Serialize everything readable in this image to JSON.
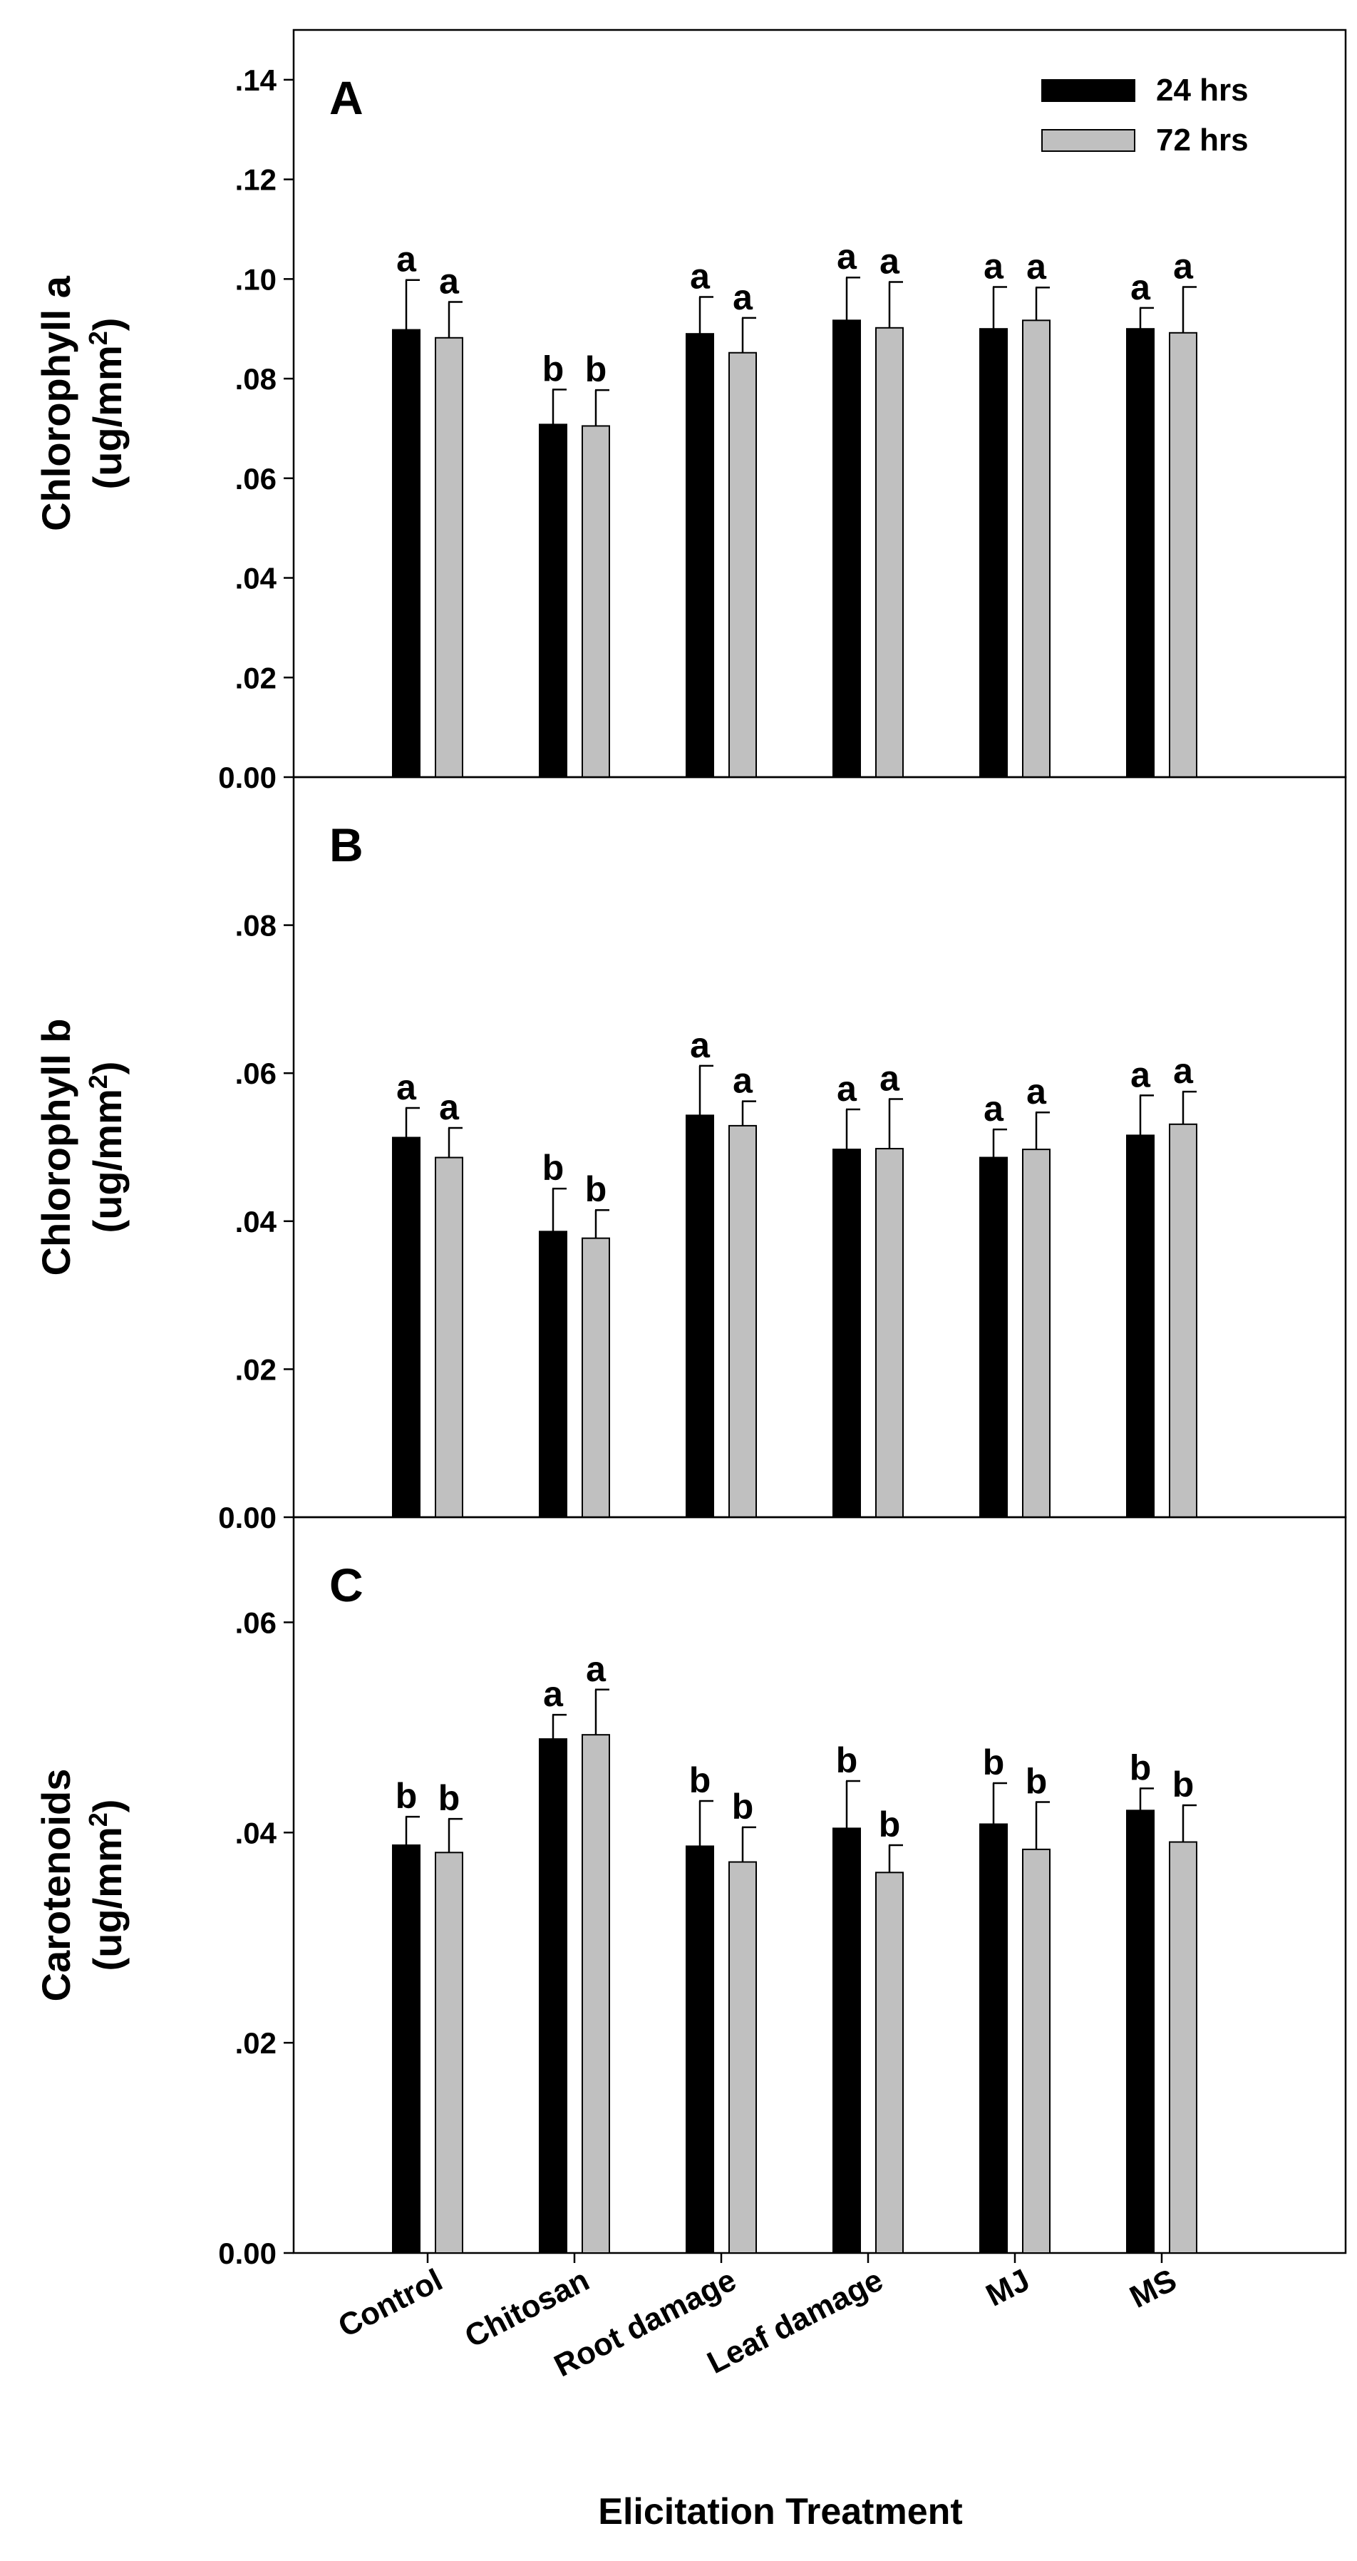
{
  "chart_data": {
    "type": "bar",
    "categories": [
      "Control",
      "Chitosan",
      "Root damage",
      "Leaf damage",
      "MJ",
      "MS"
    ],
    "xlabel": "Elicitation Treatment",
    "legend": {
      "placement": "top-right",
      "entries": [
        "24 hrs",
        "72 hrs"
      ]
    },
    "colors": {
      "24 hrs": "#000000",
      "72 hrs": "#c0c0c0"
    },
    "panels": [
      {
        "letter": "A",
        "ylabel_line1": "Chlorophyll a",
        "ylabel_line2": "(ug/mm",
        "ylabel_sup": "2",
        "ylabel_close": ")",
        "ylim": [
          0,
          0.15
        ],
        "yticks": [
          0,
          0.02,
          0.04,
          0.06,
          0.08,
          0.1,
          0.12,
          0.14
        ],
        "ytick_labels": [
          "0.00",
          ".02",
          ".04",
          ".06",
          ".08",
          ".10",
          ".12",
          ".14"
        ],
        "series": [
          {
            "name": "24 hrs",
            "values": [
              0.0898,
              0.0708,
              0.089,
              0.0917,
              0.09,
              0.09
            ],
            "errors": [
              0.01,
              0.007,
              0.0074,
              0.0086,
              0.0084,
              0.0042
            ],
            "letters": [
              "a",
              "b",
              "a",
              "a",
              "a",
              "a"
            ]
          },
          {
            "name": "72 hrs",
            "values": [
              0.0882,
              0.0705,
              0.0852,
              0.0902,
              0.0917,
              0.0892
            ],
            "errors": [
              0.0072,
              0.0072,
              0.007,
              0.0092,
              0.0066,
              0.0092
            ],
            "letters": [
              "a",
              "b",
              "a",
              "a",
              "a",
              "a"
            ]
          }
        ]
      },
      {
        "letter": "B",
        "ylabel_line1": "Chlorophyll b",
        "ylabel_line2": "(ug/mm",
        "ylabel_sup": "2",
        "ylabel_close": ")",
        "ylim": [
          0,
          0.1
        ],
        "yticks": [
          0,
          0.02,
          0.04,
          0.06,
          0.08
        ],
        "ytick_labels": [
          "0.00",
          ".02",
          ".04",
          ".06",
          ".08"
        ],
        "series": [
          {
            "name": "24 hrs",
            "values": [
              0.0513,
              0.0386,
              0.0543,
              0.0497,
              0.0486,
              0.0516
            ],
            "errors": [
              0.004,
              0.0058,
              0.0067,
              0.0054,
              0.0038,
              0.0054
            ],
            "letters": [
              "a",
              "b",
              "a",
              "a",
              "a",
              "a"
            ]
          },
          {
            "name": "72 hrs",
            "values": [
              0.0486,
              0.0377,
              0.0529,
              0.0498,
              0.0497,
              0.0531
            ],
            "errors": [
              0.004,
              0.0038,
              0.0033,
              0.0067,
              0.005,
              0.0044
            ],
            "letters": [
              "a",
              "b",
              "a",
              "a",
              "a",
              "a"
            ]
          }
        ]
      },
      {
        "letter": "C",
        "ylabel_line1": "Carotenoids",
        "ylabel_line2": "(ug/mm",
        "ylabel_sup": "2",
        "ylabel_close": ")",
        "ylim": [
          0,
          0.07
        ],
        "yticks": [
          0,
          0.02,
          0.04,
          0.06
        ],
        "ytick_labels": [
          "0.00",
          ".02",
          ".04",
          ".06"
        ],
        "series": [
          {
            "name": "24 hrs",
            "values": [
              0.0388,
              0.0489,
              0.0387,
              0.0404,
              0.0408,
              0.0421
            ],
            "errors": [
              0.0027,
              0.0023,
              0.0043,
              0.0045,
              0.0039,
              0.0021
            ],
            "letters": [
              "b",
              "a",
              "b",
              "b",
              "b",
              "b"
            ]
          },
          {
            "name": "72 hrs",
            "values": [
              0.0381,
              0.0493,
              0.0372,
              0.0362,
              0.0384,
              0.0391
            ],
            "errors": [
              0.0032,
              0.0043,
              0.0033,
              0.0026,
              0.0045,
              0.0035
            ],
            "letters": [
              "b",
              "a",
              "b",
              "b",
              "b",
              "b"
            ]
          }
        ]
      }
    ]
  }
}
